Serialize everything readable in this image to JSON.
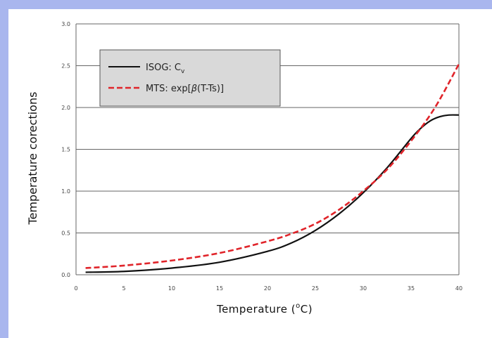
{
  "slide": {
    "background_color": "#a9b6ee",
    "panel_color": "#ffffff"
  },
  "chart_data": {
    "type": "line",
    "title": "",
    "xlabel_main": "Temperature (",
    "xlabel_super": "o",
    "xlabel_tail": "C)",
    "ylabel": "Temperature corections",
    "xlim": [
      0,
      40
    ],
    "ylim": [
      0,
      3.0
    ],
    "xticks": [
      0,
      5,
      10,
      15,
      20,
      25,
      30,
      35,
      40
    ],
    "xtick_labels": [
      "0",
      "5",
      "10",
      "15",
      "20",
      "25",
      "30",
      "35",
      "40"
    ],
    "yticks": [
      0,
      0.5,
      1.0,
      1.5,
      2.0,
      2.5,
      3.0
    ],
    "ytick_labels": [
      "0.0",
      "0.5",
      "1.0",
      "1.5",
      "2.0",
      "2.5",
      "3.0"
    ],
    "grid": "horizontal",
    "legend": {
      "placement": "top-left",
      "background": "#d9d9d9",
      "entries": [
        {
          "label": "ISOG: C",
          "subscript": "v",
          "color": "#111111",
          "style": "solid"
        },
        {
          "label": "MTS: exp[",
          "symbol": "β",
          "label_tail": "(T-Ts)]",
          "color": "#e0242a",
          "style": "dashed"
        }
      ]
    },
    "series": [
      {
        "key": "isog",
        "color": "#111111",
        "style": "solid",
        "x": [
          1,
          5,
          10,
          15,
          20,
          22.5,
          25,
          27.5,
          30,
          32.5,
          35,
          36,
          37,
          38,
          39,
          40
        ],
        "y": [
          0.03,
          0.04,
          0.08,
          0.15,
          0.28,
          0.38,
          0.53,
          0.73,
          0.98,
          1.28,
          1.63,
          1.75,
          1.84,
          1.89,
          1.91,
          1.91
        ]
      },
      {
        "key": "mts",
        "color": "#e0242a",
        "style": "dashed",
        "x": [
          1,
          5,
          10,
          15,
          20,
          22.5,
          25,
          27.5,
          30,
          32.5,
          35,
          37.5,
          40
        ],
        "y": [
          0.08,
          0.11,
          0.17,
          0.26,
          0.4,
          0.49,
          0.61,
          0.78,
          1.0,
          1.26,
          1.6,
          2.0,
          2.52
        ]
      }
    ]
  }
}
